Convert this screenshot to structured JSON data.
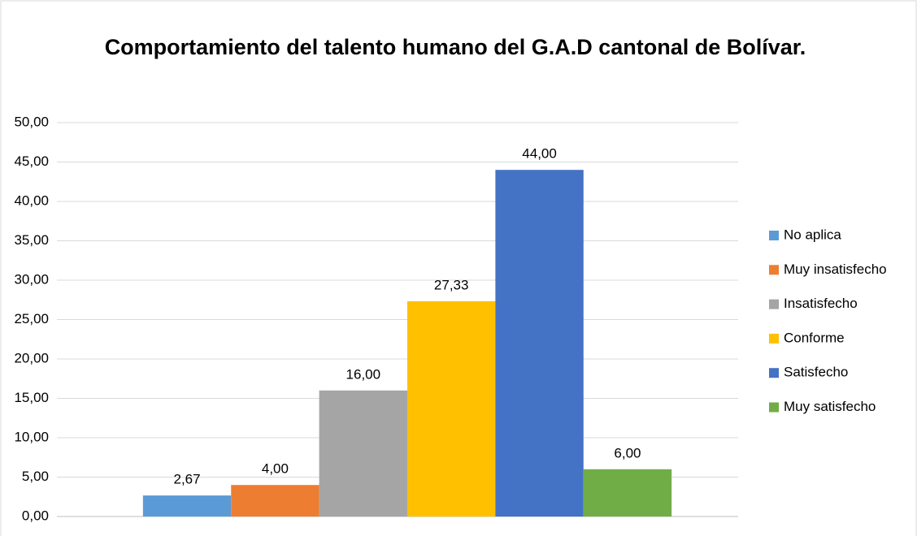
{
  "chart_data": {
    "type": "bar",
    "title": "Comportamiento del talento humano del G.A.D cantonal de Bolívar.",
    "categories": [
      null
    ],
    "series": [
      {
        "name": "No aplica",
        "color": "#5b9bd5",
        "values": [
          2.67
        ],
        "value_labels": [
          "2,67"
        ]
      },
      {
        "name": "Muy insatisfecho",
        "color": "#ed7d31",
        "values": [
          4
        ],
        "value_labels": [
          "4,00"
        ]
      },
      {
        "name": "Insatisfecho",
        "color": "#a5a5a5",
        "values": [
          16
        ],
        "value_labels": [
          "16,00"
        ]
      },
      {
        "name": "Conforme",
        "color": "#ffc000",
        "values": [
          27.33
        ],
        "value_labels": [
          "27,33"
        ]
      },
      {
        "name": "Satisfecho",
        "color": "#4472c4",
        "values": [
          44
        ],
        "value_labels": [
          "44,00"
        ]
      },
      {
        "name": "Muy satisfecho",
        "color": "#70ad47",
        "values": [
          6
        ],
        "value_labels": [
          "6,00"
        ]
      }
    ],
    "ylim": [
      0,
      50
    ],
    "yticks": [
      {
        "value": 0,
        "label": "0,00"
      },
      {
        "value": 5,
        "label": "5,00"
      },
      {
        "value": 10,
        "label": "10,00"
      },
      {
        "value": 15,
        "label": "15,00"
      },
      {
        "value": 20,
        "label": "20,00"
      },
      {
        "value": 25,
        "label": "25,00"
      },
      {
        "value": 30,
        "label": "30,00"
      },
      {
        "value": 35,
        "label": "35,00"
      },
      {
        "value": 40,
        "label": "40,00"
      },
      {
        "value": 45,
        "label": "45,00"
      },
      {
        "value": 50,
        "label": "50,00"
      }
    ],
    "grid": true,
    "legend": "right"
  }
}
